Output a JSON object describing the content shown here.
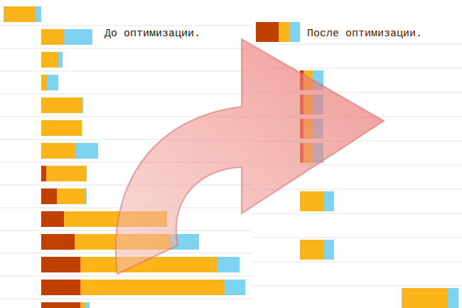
{
  "chart_data": [
    {
      "type": "bar",
      "title": "До оптимизации.",
      "orientation": "horizontal",
      "stacked": true,
      "tick_labels": false,
      "grid": true,
      "categories": [
        null,
        null,
        null,
        null,
        null,
        null,
        null,
        null,
        null,
        null,
        null,
        null,
        null,
        null
      ],
      "start": [
        5,
        58,
        58,
        58,
        58,
        58,
        58,
        58,
        58,
        58,
        58,
        58,
        58,
        58
      ],
      "series": [
        {
          "color": "#c04000",
          "values": [
            0,
            0,
            0,
            0,
            0,
            0,
            0,
            7,
            22,
            32,
            47,
            55,
            55,
            55
          ]
        },
        {
          "color": "#fbb41a",
          "values": [
            45,
            32,
            24,
            8,
            57,
            57,
            48,
            57,
            40,
            145,
            135,
            192,
            202,
            7
          ]
        },
        {
          "color": "#7dd3f0",
          "values": [
            8,
            40,
            6,
            16,
            2,
            0,
            32,
            0,
            2,
            0,
            40,
            32,
            30,
            6
          ]
        }
      ],
      "xlim": [
        0,
        355
      ],
      "xticks": []
    },
    {
      "type": "bar",
      "title": "После оптимизации.",
      "orientation": "horizontal",
      "stacked": true,
      "tick_labels": false,
      "grid": true,
      "categories": [
        null,
        null,
        null,
        null,
        null,
        null,
        null,
        null,
        null,
        null,
        null,
        null
      ],
      "start": [
        5,
        null,
        67,
        67,
        67,
        67,
        null,
        67,
        null,
        67,
        null,
        210
      ],
      "series": [
        {
          "color": "#c04000",
          "values": [
            32,
            null,
            5,
            5,
            5,
            5,
            null,
            0,
            null,
            0,
            null,
            0
          ]
        },
        {
          "color": "#fbb41a",
          "values": [
            15,
            null,
            13,
            13,
            13,
            13,
            null,
            33,
            null,
            33,
            null,
            65
          ]
        },
        {
          "color": "#7dd3f0",
          "values": [
            15,
            null,
            15,
            15,
            15,
            15,
            null,
            15,
            null,
            15,
            null,
            15
          ]
        }
      ],
      "xlim": [
        0,
        295
      ],
      "xticks": []
    }
  ]
}
